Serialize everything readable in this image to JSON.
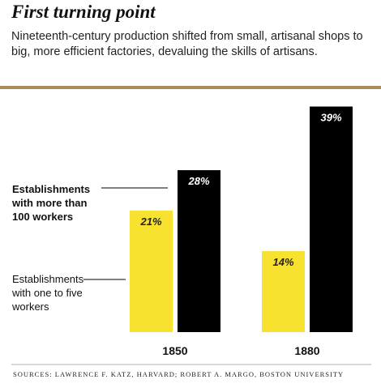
{
  "chart_data": {
    "type": "bar",
    "title": "First turning point",
    "subtitle": "Nineteenth-century production shifted from small, artisanal shops to big, more efficient factories, devaluing the skills of artisans.",
    "categories": [
      "1850",
      "1880"
    ],
    "series": [
      {
        "name": "Establishments with one to five workers",
        "color": "#f7e22f",
        "values": [
          21,
          14
        ],
        "value_labels": [
          "21%",
          "14%"
        ]
      },
      {
        "name": "Establishments with more than 100 workers",
        "color": "#000000",
        "values": [
          28,
          39
        ],
        "value_labels": [
          "28%",
          "39%"
        ]
      }
    ],
    "source": "SOURCES: LAWRENCE F. KATZ, HARVARD; ROBERT A. MARGO, BOSTON UNIVERSITY"
  }
}
